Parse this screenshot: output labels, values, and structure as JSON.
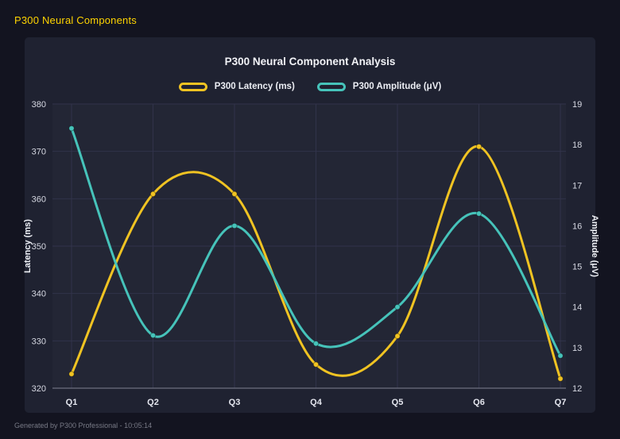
{
  "header": {
    "title": "P300 Neural Components"
  },
  "footer": {
    "text": "Generated by P300 Professional - 10:05:14"
  },
  "colors": {
    "background": "#131420",
    "card": "#1f2231",
    "grid": "#31334a",
    "axis_line": "#6e7081",
    "header_accent": "#ffd400",
    "series_latency": "#f0c322",
    "series_amplitude": "#46c3ba"
  },
  "chart_data": {
    "type": "line",
    "title": "P300 Neural Component Analysis",
    "categories": [
      "Q1",
      "Q2",
      "Q3",
      "Q4",
      "Q5",
      "Q6",
      "Q7"
    ],
    "series": [
      {
        "name": "P300 Latency (ms)",
        "axis": "left",
        "color": "#f0c322",
        "values": [
          323,
          361,
          361,
          325,
          331,
          371,
          322
        ]
      },
      {
        "name": "P300 Amplitude (μV)",
        "axis": "right",
        "color": "#46c3ba",
        "values": [
          18.4,
          13.3,
          16.0,
          13.1,
          14.0,
          16.3,
          12.8
        ]
      }
    ],
    "left_axis": {
      "label": "Latency (ms)",
      "min": 320,
      "max": 380,
      "ticks": [
        320,
        330,
        340,
        350,
        360,
        370,
        380
      ]
    },
    "right_axis": {
      "label": "Amplitude (μV)",
      "min": 12,
      "max": 19,
      "ticks": [
        12,
        13,
        14,
        15,
        16,
        17,
        18,
        19
      ]
    },
    "grid": true,
    "legend_position": "top",
    "curve": "smooth"
  }
}
